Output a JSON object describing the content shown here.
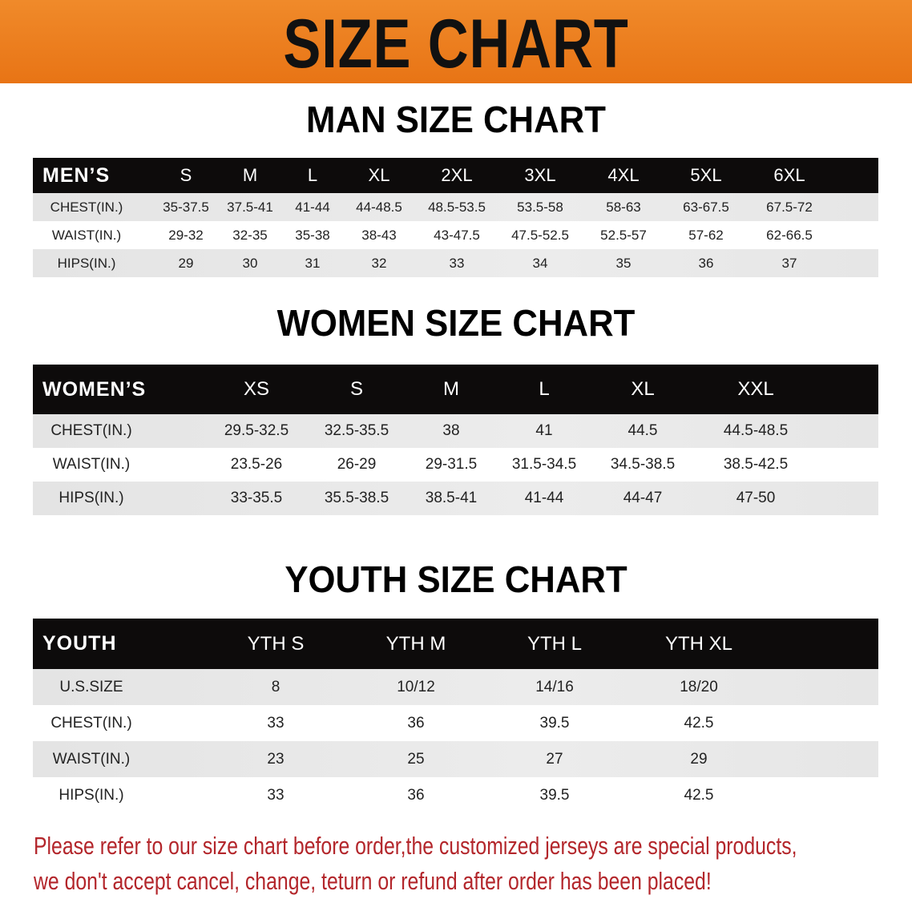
{
  "header": {
    "title": "SIZE CHART",
    "color": "#ec7a1c"
  },
  "men": {
    "title": "MAN SIZE CHART",
    "header_label": "MEN’S",
    "sizes": [
      "S",
      "M",
      "L",
      "XL",
      "2XL",
      "3XL",
      "4XL",
      "5XL",
      "6XL"
    ],
    "rows": [
      {
        "label": "CHEST(IN.)",
        "values": [
          "35-37.5",
          "37.5-41",
          "41-44",
          "44-48.5",
          "48.5-53.5",
          "53.5-58",
          "58-63",
          "63-67.5",
          "67.5-72"
        ]
      },
      {
        "label": "WAIST(IN.)",
        "values": [
          "29-32",
          "32-35",
          "35-38",
          "38-43",
          "43-47.5",
          "47.5-52.5",
          "52.5-57",
          "57-62",
          "62-66.5"
        ]
      },
      {
        "label": "HIPS(IN.)",
        "values": [
          "29",
          "30",
          "31",
          "32",
          "33",
          "34",
          "35",
          "36",
          "37"
        ]
      }
    ]
  },
  "women": {
    "title": "WOMEN SIZE CHART",
    "header_label": "WOMEN’S",
    "sizes": [
      "XS",
      "S",
      "M",
      "L",
      "XL",
      "XXL"
    ],
    "rows": [
      {
        "label": "CHEST(IN.)",
        "values": [
          "29.5-32.5",
          "32.5-35.5",
          "38",
          "41",
          "44.5",
          "44.5-48.5"
        ]
      },
      {
        "label": "WAIST(IN.)",
        "values": [
          "23.5-26",
          "26-29",
          "29-31.5",
          "31.5-34.5",
          "34.5-38.5",
          "38.5-42.5"
        ]
      },
      {
        "label": "HIPS(IN.)",
        "values": [
          "33-35.5",
          "35.5-38.5",
          "38.5-41",
          "41-44",
          "44-47",
          "47-50"
        ]
      }
    ]
  },
  "youth": {
    "title": "YOUTH SIZE CHART",
    "header_label": "YOUTH",
    "sizes": [
      "YTH S",
      "YTH M",
      "YTH L",
      "YTH XL"
    ],
    "rows": [
      {
        "label": "U.S.SIZE",
        "values": [
          "8",
          "10/12",
          "14/16",
          "18/20"
        ]
      },
      {
        "label": "CHEST(IN.)",
        "values": [
          "33",
          "36",
          "39.5",
          "42.5"
        ]
      },
      {
        "label": "WAIST(IN.)",
        "values": [
          "23",
          "25",
          "27",
          "29"
        ]
      },
      {
        "label": "HIPS(IN.)",
        "values": [
          "33",
          "36",
          "39.5",
          "42.5"
        ]
      }
    ]
  },
  "footer": {
    "line1": "Please refer to our size chart before order,the customized jerseys are special products,",
    "line2": "we don't accept cancel, change, teturn or refund after order has been placed!",
    "color": "#b3262b"
  }
}
